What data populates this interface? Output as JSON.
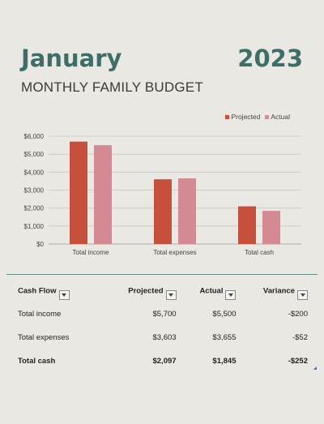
{
  "header": {
    "month": "January",
    "year": "2023",
    "subtitle": "MONTHLY FAMILY BUDGET"
  },
  "colors": {
    "projected": "#c5503b",
    "actual": "#d38a92",
    "accent": "#3e6e67"
  },
  "chart_data": {
    "type": "bar",
    "categories": [
      "Total income",
      "Total expenses",
      "Total cash"
    ],
    "series": [
      {
        "name": "Projected",
        "values": [
          5700,
          3603,
          2097
        ]
      },
      {
        "name": "Actual",
        "values": [
          5500,
          3655,
          1845
        ]
      }
    ],
    "ylim": [
      0,
      6000
    ],
    "yticks": [
      "$0",
      "$1,000",
      "$2,000",
      "$3,000",
      "$4,000",
      "$5,000",
      "$6,000"
    ],
    "grid": true,
    "legend": "top-right"
  },
  "table": {
    "headers": [
      "Cash Flow",
      "Projected",
      "Actual",
      "Variance"
    ],
    "rows": [
      {
        "label": "Total income",
        "projected": "$5,700",
        "actual": "$5,500",
        "variance": "-$200"
      },
      {
        "label": "Total expenses",
        "projected": "$3,603",
        "actual": "$3,655",
        "variance": "-$52"
      },
      {
        "label": "Total cash",
        "projected": "$2,097",
        "actual": "$1,845",
        "variance": "-$252"
      }
    ]
  }
}
